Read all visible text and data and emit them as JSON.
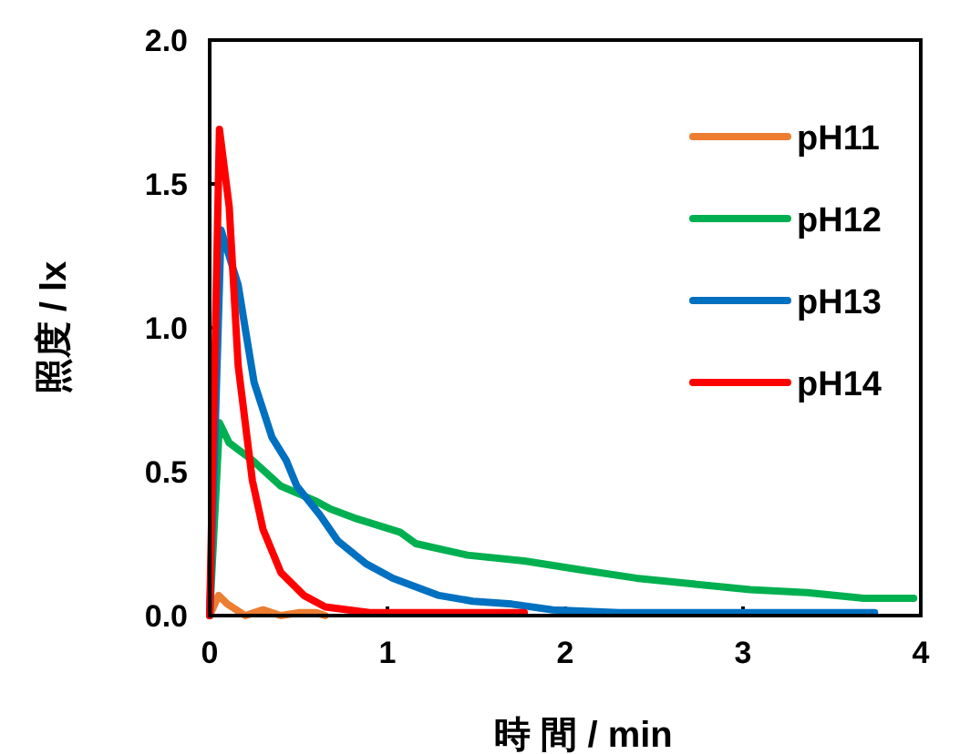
{
  "chart_data": {
    "type": "line",
    "xlabel": "時 間 / min",
    "ylabel": "照度 / lx",
    "xlim": [
      0,
      4
    ],
    "ylim": [
      0,
      2
    ],
    "xticks": [
      0,
      1,
      2,
      3,
      4
    ],
    "yticks": [
      {
        "value": 0,
        "label": "0.0"
      },
      {
        "value": 0.5,
        "label": "0.5"
      },
      {
        "value": 1,
        "label": "1.0"
      },
      {
        "value": 1.5,
        "label": "1.5"
      },
      {
        "value": 2,
        "label": "2.0"
      }
    ],
    "grid": false,
    "legend": "top right",
    "marker": "none",
    "line_style": "solid",
    "series": [
      {
        "name": "pH11",
        "color": "#ed7d31",
        "x": [
          0,
          0.05,
          0.1,
          0.2,
          0.3,
          0.4,
          0.5,
          0.6,
          0.65
        ],
        "values": [
          0,
          0.07,
          0.04,
          0,
          0.02,
          0,
          0.01,
          0.01,
          0
        ]
      },
      {
        "name": "pH12",
        "color": "#00b050",
        "x": [
          0,
          0.055,
          0.11,
          0.24,
          0.4,
          0.59,
          0.68,
          0.81,
          1.07,
          1.16,
          1.45,
          1.77,
          2.08,
          2.4,
          2.72,
          3.04,
          3.36,
          3.68,
          3.96
        ],
        "values": [
          0,
          0.67,
          0.6,
          0.54,
          0.45,
          0.4,
          0.37,
          0.34,
          0.29,
          0.25,
          0.21,
          0.19,
          0.16,
          0.13,
          0.11,
          0.09,
          0.08,
          0.06,
          0.06
        ]
      },
      {
        "name": "pH13",
        "color": "#0070c0",
        "x": [
          0,
          0.064,
          0.16,
          0.21,
          0.25,
          0.35,
          0.43,
          0.49,
          0.62,
          0.72,
          0.88,
          1.03,
          1.29,
          1.48,
          1.7,
          1.93,
          2.3,
          2.8,
          3.3,
          3.74
        ],
        "values": [
          0,
          1.34,
          1.15,
          0.96,
          0.81,
          0.62,
          0.54,
          0.45,
          0.35,
          0.26,
          0.18,
          0.13,
          0.07,
          0.05,
          0.04,
          0.02,
          0.01,
          0.01,
          0.01,
          0.01
        ]
      },
      {
        "name": "pH14",
        "color": "#ff0000",
        "x": [
          0,
          0.055,
          0.11,
          0.16,
          0.24,
          0.3,
          0.4,
          0.53,
          0.65,
          0.9,
          1.2,
          1.5,
          1.77
        ],
        "values": [
          0,
          1.69,
          1.42,
          0.87,
          0.47,
          0.3,
          0.15,
          0.07,
          0.03,
          0.01,
          0.01,
          0.01,
          0.01
        ]
      }
    ]
  }
}
